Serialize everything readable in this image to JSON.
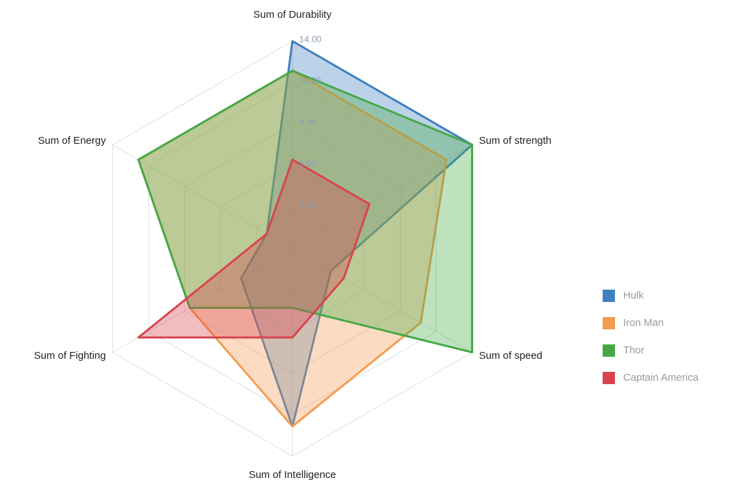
{
  "chart_data": {
    "type": "radar",
    "categories": [
      "Sum of Durability",
      "Sum of strength",
      "Sum of speed",
      "Sum of Intelligence",
      "Sum of Fighting",
      "Sum of Energy"
    ],
    "series": [
      {
        "name": "Hulk",
        "color": "#3f7fbf",
        "values": [
          14,
          14,
          3,
          12,
          4,
          2
        ]
      },
      {
        "name": "Iron Man",
        "color": "#f39c4f",
        "values": [
          12,
          12,
          10,
          12,
          8,
          12
        ]
      },
      {
        "name": "Thor",
        "color": "#45a845",
        "values": [
          12,
          14,
          14,
          4,
          8,
          12
        ]
      },
      {
        "name": "Captain America",
        "color": "#d9434e",
        "values": [
          6,
          6,
          4,
          6,
          12,
          2
        ]
      }
    ],
    "rlim": [
      0,
      14
    ],
    "rticks": [
      {
        "value": 2.8,
        "label": "2.80"
      },
      {
        "value": 5.6,
        "label": "5.60"
      },
      {
        "value": 8.4,
        "label": "8.40"
      },
      {
        "value": 11.2,
        "label": "11.20"
      },
      {
        "value": 14,
        "label": "14.00"
      }
    ],
    "legend": "right"
  }
}
